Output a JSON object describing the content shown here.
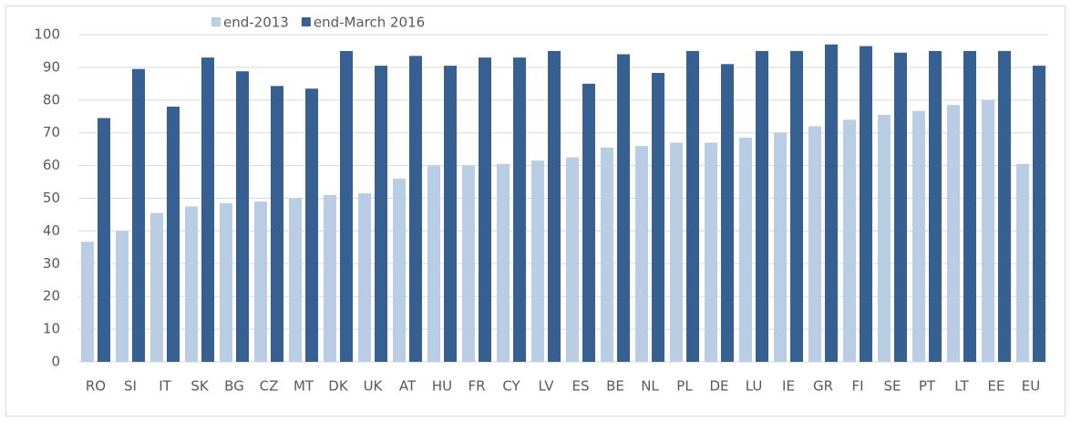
{
  "chart_data": {
    "type": "bar",
    "categories": [
      "RO",
      "SI",
      "IT",
      "SK",
      "BG",
      "CZ",
      "MT",
      "DK",
      "UK",
      "AT",
      "HU",
      "FR",
      "CY",
      "LV",
      "ES",
      "BE",
      "NL",
      "PL",
      "DE",
      "LU",
      "IE",
      "GR",
      "FI",
      "SE",
      "PT",
      "LT",
      "EE",
      "EU"
    ],
    "series": [
      {
        "name": "end-2013",
        "color": "#b9cde5",
        "values": [
          36.7,
          40,
          45.5,
          47.5,
          48.5,
          49,
          50,
          51,
          51.5,
          56,
          60,
          60,
          60.5,
          61.5,
          62.5,
          65.5,
          66,
          67,
          67,
          68.5,
          70,
          72,
          74,
          75.5,
          76.7,
          78.5,
          80,
          60.5
        ]
      },
      {
        "name": "end-March 2016",
        "color": "#376092",
        "values": [
          74.5,
          89.5,
          78,
          93,
          88.8,
          84.3,
          83.5,
          95,
          90.5,
          93.5,
          90.5,
          93,
          93,
          95,
          85,
          94,
          88.3,
          95,
          91,
          95,
          95,
          97,
          96.5,
          94.5,
          95,
          95,
          95,
          90.5
        ]
      }
    ],
    "ylim": [
      0,
      100
    ],
    "yticks": [
      0,
      10,
      20,
      30,
      40,
      50,
      60,
      70,
      80,
      90,
      100
    ],
    "grid": true,
    "legend": "top"
  }
}
